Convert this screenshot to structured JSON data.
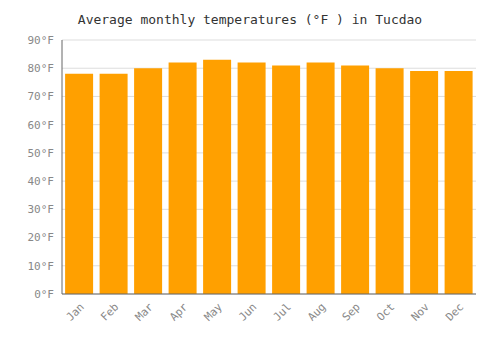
{
  "chart_data": {
    "type": "bar",
    "title": "Average monthly temperatures (°F ) in Tucdao",
    "categories": [
      "Jan",
      "Feb",
      "Mar",
      "Apr",
      "May",
      "Jun",
      "Jul",
      "Aug",
      "Sep",
      "Oct",
      "Nov",
      "Dec"
    ],
    "values": [
      78,
      78,
      80,
      82,
      83,
      82,
      81,
      82,
      81,
      80,
      79,
      79
    ],
    "color": "#FFA000",
    "ylim": [
      0,
      90
    ],
    "yticks": [
      {
        "value": 0,
        "label": "0°F"
      },
      {
        "value": 10,
        "label": "10°F"
      },
      {
        "value": 20,
        "label": "20°F"
      },
      {
        "value": 30,
        "label": "30°F"
      },
      {
        "value": 40,
        "label": "40°F"
      },
      {
        "value": 50,
        "label": "50°F"
      },
      {
        "value": 60,
        "label": "60°F"
      },
      {
        "value": 70,
        "label": "70°F"
      },
      {
        "value": 80,
        "label": "80°F"
      },
      {
        "value": 90,
        "label": "90°F"
      }
    ],
    "grid": true
  }
}
